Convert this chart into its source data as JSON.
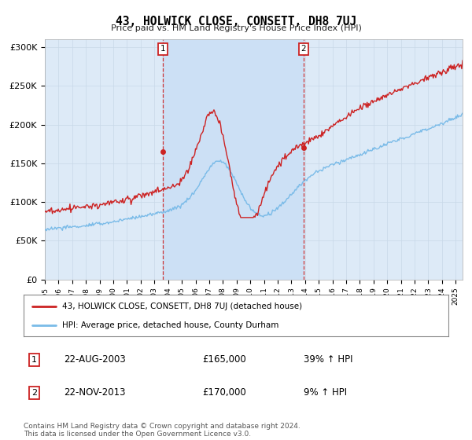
{
  "title": "43, HOLWICK CLOSE, CONSETT, DH8 7UJ",
  "subtitle": "Price paid vs. HM Land Registry's House Price Index (HPI)",
  "ylim": [
    0,
    310000
  ],
  "yticks": [
    0,
    50000,
    100000,
    150000,
    200000,
    250000,
    300000
  ],
  "ytick_labels": [
    "£0",
    "£50K",
    "£100K",
    "£150K",
    "£200K",
    "£250K",
    "£300K"
  ],
  "x_start_year": 1995,
  "x_end_year": 2025,
  "hpi_color": "#7abbe8",
  "price_color": "#cc2222",
  "marker1_year": 2003.625,
  "marker1_price": 165000,
  "marker1_label": "1",
  "marker1_date_str": "22-AUG-2003",
  "marker1_pct": "39% ↑ HPI",
  "marker2_year": 2013.875,
  "marker2_price": 170000,
  "marker2_label": "2",
  "marker2_date_str": "22-NOV-2013",
  "marker2_pct": "9% ↑ HPI",
  "legend_line1": "43, HOLWICK CLOSE, CONSETT, DH8 7UJ (detached house)",
  "legend_line2": "HPI: Average price, detached house, County Durham",
  "footer": "Contains HM Land Registry data © Crown copyright and database right 2024.\nThis data is licensed under the Open Government Licence v3.0.",
  "background_color": "#ddeaf7",
  "highlight_color": "#cce0f5",
  "plot_bg_color": "#ddeaf7"
}
